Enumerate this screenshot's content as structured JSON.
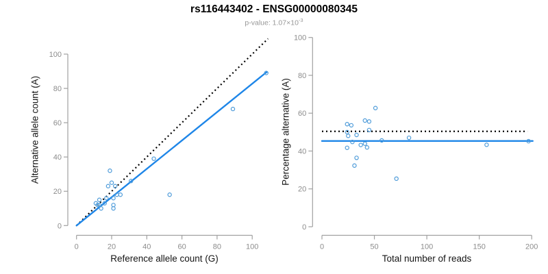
{
  "header": {
    "title": "rs116443402 - ENSG00000080345",
    "subtitle_prefix": "p-value: 1.07×10",
    "subtitle_exponent": "-3"
  },
  "colors": {
    "accent_blue": "#1e86e8",
    "point_blue": "#4d9bd9",
    "reference_black": "#000000",
    "axis_gray": "#a0a0a0",
    "tick_label_gray": "#8c8c8c",
    "axis_title_black": "#141414",
    "subtitle_gray": "#979797"
  },
  "chart_data": [
    {
      "type": "scatter",
      "title": "",
      "xlabel": "Reference allele count (G)",
      "ylabel": "Alternative allele count (A)",
      "xlim": [
        0,
        109
      ],
      "ylim": [
        0,
        110
      ],
      "xticks": [
        0,
        20,
        40,
        60,
        80,
        100
      ],
      "yticks": [
        0,
        20,
        40,
        60,
        80,
        100
      ],
      "grid": false,
      "points": [
        [
          19,
          32
        ],
        [
          18,
          23
        ],
        [
          20,
          25
        ],
        [
          22,
          23
        ],
        [
          13,
          15
        ],
        [
          11,
          13
        ],
        [
          13,
          12
        ],
        [
          12,
          12
        ],
        [
          16,
          13
        ],
        [
          14,
          10
        ],
        [
          17,
          16
        ],
        [
          21,
          16
        ],
        [
          25,
          18
        ],
        [
          23,
          18
        ],
        [
          21,
          12
        ],
        [
          21,
          10
        ],
        [
          31,
          26
        ],
        [
          44,
          39
        ],
        [
          53,
          18
        ],
        [
          89,
          68
        ],
        [
          108,
          89
        ]
      ],
      "lines": [
        {
          "name": "identity-line",
          "x1": 0,
          "y1": 0,
          "x2": 109,
          "y2": 109,
          "style": "dotted",
          "color": "reference_black"
        },
        {
          "name": "fit-line",
          "x1": 0,
          "y1": 0,
          "x2": 108.3,
          "y2": 89.6,
          "style": "solid",
          "color": "accent_blue",
          "slope": 0.828
        }
      ]
    },
    {
      "type": "scatter",
      "title": "",
      "xlabel": "Total number of reads",
      "ylabel": "Percentage alternative (A)",
      "xlim": [
        0,
        201
      ],
      "ylim": [
        0,
        100
      ],
      "xticks": [
        0,
        50,
        100,
        150,
        200
      ],
      "yticks": [
        0,
        20,
        40,
        60,
        80,
        100
      ],
      "grid": false,
      "points": [
        [
          51,
          62.7
        ],
        [
          41,
          56.1
        ],
        [
          45,
          55.6
        ],
        [
          45,
          51.1
        ],
        [
          28,
          53.6
        ],
        [
          24,
          54.2
        ],
        [
          25,
          48
        ],
        [
          24,
          50
        ],
        [
          29,
          44.8
        ],
        [
          24,
          41.7
        ],
        [
          33,
          48.5
        ],
        [
          37,
          43.2
        ],
        [
          43,
          41.9
        ],
        [
          41,
          43.9
        ],
        [
          33,
          36.4
        ],
        [
          31,
          32.3
        ],
        [
          57,
          45.6
        ],
        [
          83,
          47
        ],
        [
          71,
          25.4
        ],
        [
          157,
          43.3
        ],
        [
          197,
          45.2
        ]
      ],
      "lines": [
        {
          "name": "expected-50pct-line",
          "x1": 0,
          "y1": 50.4,
          "x2": 196,
          "y2": 50.4,
          "style": "dotted",
          "color": "reference_black"
        },
        {
          "name": "mean-pct-line",
          "x1": 0,
          "y1": 45.3,
          "x2": 201,
          "y2": 45.3,
          "style": "solid",
          "color": "accent_blue",
          "value": 45.3
        }
      ]
    }
  ]
}
